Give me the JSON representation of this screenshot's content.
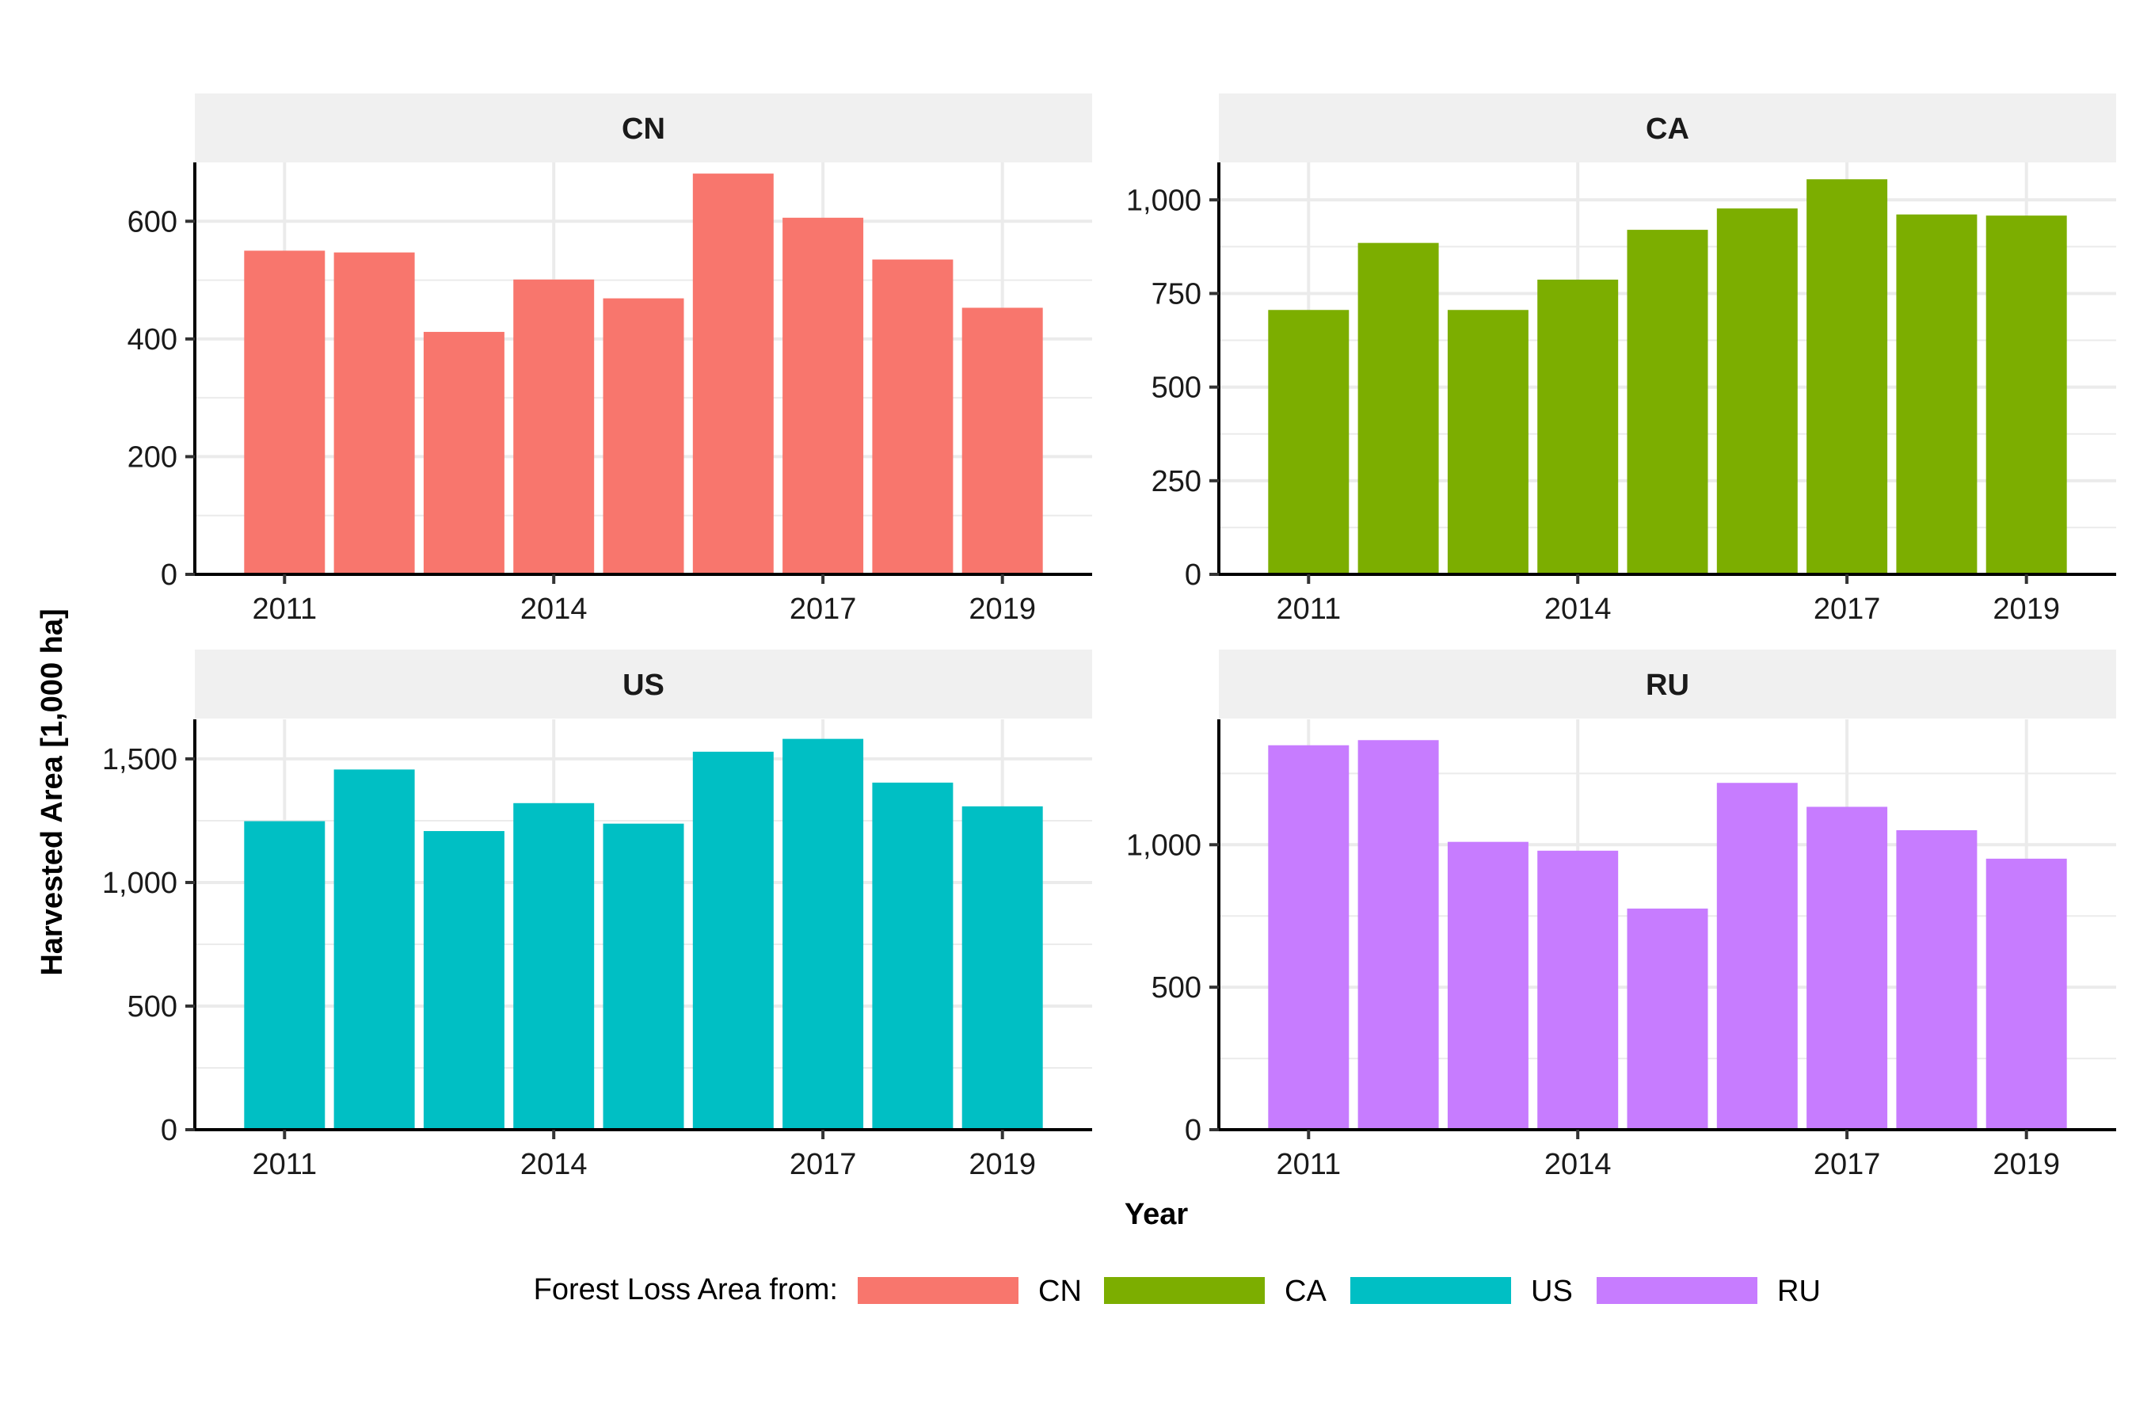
{
  "figure": {
    "xlabel": "Year",
    "ylabel": "Harvested Area [1,000 ha]",
    "legend_title": "Forest Loss Area from:",
    "legend_position": "bottom",
    "grid": true,
    "background": "#ffffff",
    "strip_color": "#f0f0f0",
    "grid_color": "#ebebeb"
  },
  "chart_data": [
    {
      "type": "bar",
      "panel": "CN",
      "title": "CN",
      "color": "#F8766D",
      "x": [
        2011,
        2012,
        2013,
        2014,
        2015,
        2016,
        2017,
        2018,
        2019
      ],
      "values": [
        550,
        547,
        412,
        501,
        469,
        681,
        606,
        535,
        453
      ],
      "xlim": [
        2010,
        2020
      ],
      "ylim": [
        0,
        700
      ],
      "xticks": [
        2011,
        2014,
        2017,
        2019
      ],
      "xtick_labels": [
        "2011",
        "2014",
        "2017",
        "2019"
      ],
      "yticks": [
        0,
        200,
        400,
        600
      ],
      "ytick_labels": [
        "0",
        "200",
        "400",
        "600"
      ]
    },
    {
      "type": "bar",
      "panel": "CA",
      "title": "CA",
      "color": "#7CAE00",
      "x": [
        2011,
        2012,
        2013,
        2014,
        2015,
        2016,
        2017,
        2018,
        2019
      ],
      "values": [
        706,
        885,
        706,
        787,
        920,
        977,
        1055,
        961,
        958
      ],
      "xlim": [
        2010,
        2020
      ],
      "ylim": [
        0,
        1100
      ],
      "xticks": [
        2011,
        2014,
        2017,
        2019
      ],
      "xtick_labels": [
        "2011",
        "2014",
        "2017",
        "2019"
      ],
      "yticks": [
        0,
        250,
        500,
        750,
        1000
      ],
      "ytick_labels": [
        "0",
        "250",
        "500",
        "750",
        "1,000"
      ]
    },
    {
      "type": "bar",
      "panel": "US",
      "title": "US",
      "color": "#00BFC4",
      "x": [
        2011,
        2012,
        2013,
        2014,
        2015,
        2016,
        2017,
        2018,
        2019
      ],
      "values": [
        1248,
        1457,
        1208,
        1321,
        1238,
        1529,
        1581,
        1404,
        1308
      ],
      "xlim": [
        2010,
        2020
      ],
      "ylim": [
        0,
        1660
      ],
      "xticks": [
        2011,
        2014,
        2017,
        2019
      ],
      "xtick_labels": [
        "2011",
        "2014",
        "2017",
        "2019"
      ],
      "yticks": [
        0,
        500,
        1000,
        1500
      ],
      "ytick_labels": [
        "0",
        "500",
        "1,000",
        "1,500"
      ]
    },
    {
      "type": "bar",
      "panel": "RU",
      "title": "RU",
      "color": "#C77CFF",
      "x": [
        2011,
        2012,
        2013,
        2014,
        2015,
        2016,
        2017,
        2018,
        2019
      ],
      "values": [
        1349,
        1367,
        1010,
        979,
        776,
        1217,
        1133,
        1051,
        951
      ],
      "xlim": [
        2010,
        2020
      ],
      "ylim": [
        0,
        1440
      ],
      "xticks": [
        2011,
        2014,
        2017,
        2019
      ],
      "xtick_labels": [
        "2011",
        "2014",
        "2017",
        "2019"
      ],
      "yticks": [
        0,
        500,
        1000
      ],
      "ytick_labels": [
        "0",
        "500",
        "1,000"
      ]
    }
  ],
  "legend": [
    {
      "label": "CN",
      "color": "#F8766D"
    },
    {
      "label": "CA",
      "color": "#7CAE00"
    },
    {
      "label": "US",
      "color": "#00BFC4"
    },
    {
      "label": "RU",
      "color": "#C77CFF"
    }
  ]
}
